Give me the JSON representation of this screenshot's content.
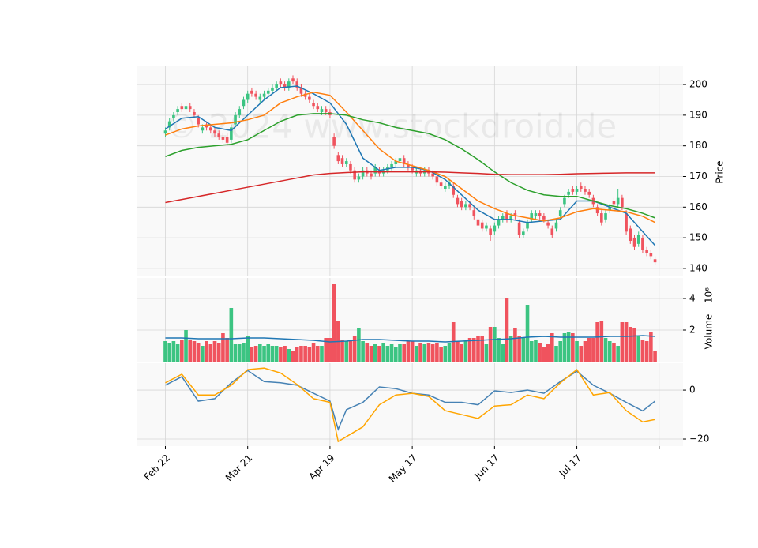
{
  "chart_data": [
    {
      "type": "candlestick",
      "watermark": "© 2024 www.stockdroid.de",
      "ylabel": "Price",
      "up_color": "#3cc482",
      "down_color": "#f0535e",
      "ylim": [
        137.4,
        206.2
      ],
      "yticks": [
        140,
        150,
        160,
        170,
        180,
        190,
        200
      ],
      "open": [
        184,
        186,
        189,
        191,
        193,
        192,
        193,
        191,
        189,
        185,
        187,
        186,
        185,
        184,
        183,
        183,
        182,
        187,
        190,
        193,
        195,
        198,
        197,
        195,
        196,
        197,
        198,
        199,
        201,
        200,
        199,
        202,
        201,
        199,
        197,
        196,
        194,
        193,
        191,
        192,
        191,
        183,
        177,
        176,
        174,
        174,
        172,
        169,
        170,
        172,
        171,
        171,
        172,
        171,
        172,
        173,
        174,
        175,
        176,
        174,
        173,
        171,
        172,
        171,
        172,
        171,
        170,
        168,
        166,
        167,
        167,
        163,
        162,
        160,
        161,
        159,
        156,
        155,
        153,
        153,
        152,
        154,
        156,
        158,
        156,
        158,
        155,
        151,
        153,
        156,
        157,
        158,
        157,
        155,
        153,
        153,
        157,
        161,
        164,
        166,
        165,
        167,
        166,
        165,
        163,
        160,
        158,
        156,
        159,
        162,
        161,
        163,
        158,
        153,
        150,
        148,
        150,
        146,
        145,
        143
      ],
      "high": [
        186,
        189,
        191,
        193,
        194,
        194,
        194,
        192,
        190,
        187,
        188,
        187,
        186,
        185,
        184,
        184,
        187,
        191,
        193,
        196,
        198,
        199,
        198,
        197,
        198,
        199,
        200,
        201,
        202,
        201,
        202,
        203,
        202,
        200,
        198,
        197,
        195,
        194,
        193,
        193,
        192,
        184,
        178,
        177,
        176,
        175,
        173,
        171,
        173,
        173,
        172,
        174,
        173,
        173,
        174,
        175,
        176,
        177,
        177,
        175,
        174,
        173,
        173,
        173,
        173,
        172,
        171,
        169,
        168,
        169,
        168,
        164,
        163,
        162,
        162,
        160,
        157,
        156,
        155,
        154,
        155,
        157,
        158,
        159,
        158,
        159,
        156,
        153,
        156,
        159,
        159,
        159,
        158,
        156,
        154,
        156,
        160,
        164,
        166,
        167,
        167,
        168,
        167,
        166,
        164,
        161,
        159,
        159,
        161,
        163,
        166,
        164,
        159,
        154,
        151,
        152,
        151,
        147,
        146,
        144
      ],
      "low": [
        183,
        185,
        188,
        190,
        191,
        191,
        191,
        189,
        186,
        184,
        185,
        184,
        183,
        182,
        181,
        180,
        181,
        186,
        189,
        192,
        194,
        196,
        195,
        194,
        195,
        196,
        197,
        198,
        199,
        198,
        198,
        200,
        198,
        196,
        195,
        194,
        192,
        191,
        190,
        190,
        189,
        179,
        174,
        173,
        173,
        171,
        168,
        168,
        169,
        170,
        169,
        170,
        170,
        170,
        171,
        172,
        173,
        174,
        173,
        172,
        171,
        170,
        170,
        170,
        170,
        169,
        167,
        166,
        165,
        166,
        163,
        160,
        159,
        159,
        159,
        156,
        153,
        152,
        152,
        149,
        151,
        153,
        155,
        155,
        155,
        156,
        150,
        150,
        152,
        155,
        156,
        156,
        155,
        153,
        150,
        152,
        156,
        160,
        163,
        164,
        164,
        165,
        164,
        163,
        160,
        157,
        154,
        155,
        158,
        160,
        160,
        159,
        151,
        148,
        146,
        147,
        145,
        144,
        143,
        141
      ],
      "close": [
        185,
        188,
        190,
        192,
        192,
        193,
        192,
        190,
        187,
        186,
        186,
        185,
        184,
        183,
        182,
        181,
        186,
        190,
        192,
        195,
        197,
        197,
        196,
        196,
        197,
        198,
        199,
        200,
        200,
        199,
        201,
        201,
        199,
        197,
        196,
        195,
        193,
        192,
        192,
        191,
        190,
        180,
        175,
        174,
        175,
        172,
        169,
        170,
        172,
        171,
        170,
        173,
        171,
        172,
        173,
        174,
        175,
        176,
        174,
        173,
        172,
        172,
        171,
        172,
        171,
        170,
        168,
        167,
        167,
        168,
        164,
        161,
        160,
        161,
        160,
        157,
        154,
        153,
        154,
        151,
        154,
        156,
        157,
        156,
        157,
        157,
        151,
        152,
        155,
        158,
        158,
        157,
        156,
        154,
        151,
        155,
        159,
        163,
        165,
        165,
        166,
        166,
        165,
        164,
        161,
        158,
        155,
        158,
        160,
        161,
        163,
        160,
        152,
        149,
        147,
        151,
        146,
        145,
        144,
        142
      ],
      "series": [
        {
          "color": "#1f77b4",
          "x": [
            0,
            4,
            8,
            12,
            16,
            20,
            24,
            28,
            32,
            36,
            40,
            44,
            48,
            52,
            56,
            60,
            64,
            68,
            72,
            76,
            80,
            84,
            88,
            92,
            96,
            100,
            104,
            108,
            112,
            116,
            119
          ],
          "values": [
            185.5,
            189,
            189.5,
            186,
            185,
            190,
            195,
            199,
            199.5,
            197,
            194,
            187,
            176,
            172,
            173,
            173,
            172,
            169,
            164,
            159,
            156,
            156,
            155,
            155.5,
            156,
            162,
            162,
            160,
            158,
            152,
            147.5
          ]
        },
        {
          "color": "#ff7f0e",
          "x": [
            0,
            4,
            8,
            12,
            16,
            20,
            24,
            28,
            32,
            36,
            40,
            44,
            48,
            52,
            56,
            60,
            64,
            68,
            72,
            76,
            80,
            84,
            88,
            92,
            96,
            100,
            104,
            108,
            112,
            116,
            119
          ],
          "values": [
            183.5,
            185.5,
            186.5,
            187,
            187.5,
            188.5,
            190,
            194,
            196,
            197.5,
            196.5,
            191,
            185,
            179,
            175,
            173.5,
            172,
            170,
            166,
            162,
            159.5,
            157.5,
            156.5,
            155.5,
            156.5,
            158.5,
            159.5,
            159,
            158.5,
            157,
            155
          ]
        },
        {
          "color": "#2ca02c",
          "x": [
            0,
            4,
            8,
            12,
            16,
            20,
            24,
            28,
            32,
            36,
            40,
            44,
            48,
            52,
            56,
            60,
            64,
            68,
            72,
            76,
            80,
            84,
            88,
            92,
            96,
            100,
            104,
            108,
            112,
            116,
            119
          ],
          "values": [
            176.5,
            178.5,
            179.5,
            180,
            180.5,
            182,
            185,
            188,
            190,
            190.5,
            190.5,
            190,
            188.5,
            187.5,
            186,
            185,
            184,
            182,
            179,
            175.5,
            171.5,
            168,
            165.5,
            164,
            163.5,
            163.5,
            162,
            160.5,
            159.5,
            158,
            156.5
          ]
        },
        {
          "color": "#d62728",
          "x": [
            0,
            4,
            8,
            12,
            16,
            20,
            24,
            28,
            32,
            36,
            40,
            44,
            48,
            52,
            56,
            60,
            64,
            68,
            72,
            76,
            80,
            84,
            88,
            92,
            96,
            100,
            104,
            108,
            112,
            116,
            119
          ],
          "values": [
            161.5,
            162.5,
            163.5,
            164.5,
            165.5,
            166.5,
            167.5,
            168.5,
            169.5,
            170.5,
            171,
            171.3,
            171.5,
            171.5,
            171.5,
            171.5,
            171.5,
            171.4,
            171.2,
            171,
            170.7,
            170.6,
            170.6,
            170.6,
            170.7,
            170.9,
            171,
            171.1,
            171.2,
            171.2,
            171.2
          ]
        }
      ]
    },
    {
      "type": "bar",
      "ylabel": "Volume",
      "scale_label": "10⁶",
      "up_color": "#3cc482",
      "down_color": "#f0535e",
      "ylim": [
        0,
        5.3
      ],
      "yticks": [
        2,
        4
      ],
      "values": [
        1.3,
        1.2,
        1.3,
        1.1,
        1.4,
        2,
        1.4,
        1.3,
        1.2,
        1,
        1.3,
        1.1,
        1.3,
        1.2,
        1.8,
        1.5,
        3.4,
        1.1,
        1.1,
        1.2,
        1.6,
        0.9,
        1,
        1.1,
        1,
        1.1,
        1,
        1,
        0.9,
        1,
        0.8,
        0.7,
        0.9,
        1,
        1,
        0.9,
        1.2,
        1,
        1,
        1.5,
        1.5,
        4.9,
        2.6,
        1.4,
        1.3,
        1.3,
        1.6,
        2.1,
        1.3,
        1.2,
        1,
        1.1,
        1,
        1.2,
        1,
        1.1,
        0.9,
        1.1,
        1.1,
        1.3,
        1.3,
        1,
        1.2,
        1.1,
        1.2,
        1.1,
        1.2,
        0.9,
        1,
        1.2,
        2.5,
        1.3,
        1.1,
        1.3,
        1.5,
        1.5,
        1.6,
        1.6,
        1.1,
        2.2,
        2.2,
        1.5,
        1.1,
        4,
        1.6,
        2.1,
        1.6,
        1.5,
        3.6,
        1.3,
        1.4,
        1.2,
        0.9,
        1.1,
        1.8,
        1,
        1.3,
        1.8,
        1.9,
        1.8,
        1.3,
        1,
        1.3,
        1.5,
        1.5,
        2.5,
        2.6,
        1.5,
        1.3,
        1.2,
        1,
        2.5,
        2.5,
        2.2,
        2.1,
        1.6,
        1.4,
        1.3,
        1.9,
        0.7
      ],
      "series": [
        {
          "color": "#1f77b4",
          "x": [
            0,
            4,
            8,
            12,
            16,
            20,
            24,
            28,
            32,
            36,
            40,
            44,
            48,
            52,
            56,
            60,
            64,
            68,
            72,
            76,
            80,
            84,
            88,
            92,
            96,
            100,
            104,
            108,
            112,
            116,
            119
          ],
          "values": [
            1.5,
            1.5,
            1.45,
            1.45,
            1.45,
            1.5,
            1.5,
            1.45,
            1.4,
            1.35,
            1.25,
            1.3,
            1.4,
            1.4,
            1.35,
            1.3,
            1.3,
            1.25,
            1.3,
            1.35,
            1.4,
            1.45,
            1.55,
            1.6,
            1.55,
            1.55,
            1.55,
            1.6,
            1.6,
            1.65,
            1.6
          ]
        }
      ]
    },
    {
      "type": "line",
      "ylim": [
        -22.9,
        11
      ],
      "yticks": [
        {
          "value": -20,
          "label": "−20"
        },
        0
      ],
      "xlim": [
        -7,
        125.8
      ],
      "xticks": [
        {
          "value": 0,
          "label": "Feb 22"
        },
        {
          "value": 20,
          "label": "Mar 21"
        },
        {
          "value": 40,
          "label": "Apr 19"
        },
        {
          "value": 60,
          "label": "May 17"
        },
        {
          "value": 80,
          "label": "Jun 17"
        },
        {
          "value": 100,
          "label": "Jul 17"
        },
        {
          "value": 120,
          "label": null
        }
      ],
      "series": [
        {
          "color": "#4682b4",
          "x": [
            0,
            4,
            8,
            12,
            16,
            20,
            24,
            28,
            32,
            36,
            40,
            42,
            44,
            48,
            52,
            56,
            60,
            64,
            68,
            72,
            76,
            80,
            84,
            88,
            92,
            96,
            100,
            104,
            108,
            112,
            116,
            119
          ],
          "values": [
            2,
            5.5,
            -4.5,
            -3.5,
            3,
            8,
            3.5,
            3,
            2,
            -1.3,
            -4.5,
            -16,
            -8,
            -5,
            1.3,
            0.6,
            -1.3,
            -2,
            -5,
            -5,
            -6,
            -0.3,
            -1,
            0,
            -1.3,
            3.5,
            7.7,
            2,
            -1.3,
            -5,
            -8.5,
            -4.5
          ]
        },
        {
          "color": "#ffa500",
          "x": [
            0,
            4,
            8,
            12,
            16,
            20,
            24,
            28,
            32,
            36,
            40,
            42,
            44,
            48,
            52,
            56,
            60,
            64,
            68,
            72,
            76,
            80,
            84,
            88,
            92,
            96,
            100,
            104,
            108,
            112,
            116,
            119
          ],
          "values": [
            3,
            6.5,
            -2,
            -2,
            2,
            8.4,
            9,
            7,
            2.3,
            -3.5,
            -5,
            -21,
            -19,
            -15,
            -6,
            -2,
            -1.3,
            -2.6,
            -8.4,
            -10,
            -11.6,
            -6.5,
            -6,
            -2,
            -3.5,
            3,
            8.4,
            -2,
            -1,
            -8.4,
            -13,
            -12
          ]
        }
      ]
    }
  ]
}
